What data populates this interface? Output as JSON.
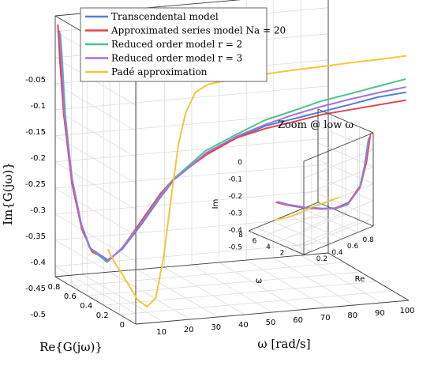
{
  "chart_data": [
    {
      "type": "line",
      "projection": "3d",
      "xlabel": "ω [rad/s]",
      "ylabel": "Re{G(jω)}",
      "zlabel": "Im{G(jω)}",
      "x_ticks": [
        "10",
        "20",
        "30",
        "40",
        "50",
        "60",
        "70",
        "80",
        "90",
        "100"
      ],
      "y_ticks": [
        "0",
        "0.2",
        "0.4",
        "0.6",
        "0.8"
      ],
      "z_ticks": [
        "-0.05",
        "-0.1",
        "-0.15",
        "-0.2",
        "-0.25",
        "-0.3",
        "-0.35",
        "-0.4",
        "-0.45",
        "-0.5"
      ],
      "xlim": [
        0,
        100
      ],
      "ylim": [
        0,
        1
      ],
      "zlim": [
        -0.52,
        -0.02
      ],
      "grid": true,
      "legend_position": "top-left",
      "series": [
        {
          "name": "Transcendental model",
          "color": "#4c7fe0",
          "points": [
            [
              0.1,
              0.95,
              -0.045
            ],
            [
              0.5,
              0.94,
              -0.1
            ],
            [
              1,
              0.92,
              -0.2
            ],
            [
              2,
              0.86,
              -0.32
            ],
            [
              3,
              0.78,
              -0.4
            ],
            [
              4,
              0.7,
              -0.44
            ],
            [
              6,
              0.55,
              -0.45
            ],
            [
              8,
              0.44,
              -0.42
            ],
            [
              12,
              0.32,
              -0.36
            ],
            [
              16,
              0.25,
              -0.31
            ],
            [
              20,
              0.2,
              -0.27
            ],
            [
              30,
              0.14,
              -0.22
            ],
            [
              40,
              0.1,
              -0.19
            ],
            [
              50,
              0.08,
              -0.17
            ],
            [
              60,
              0.07,
              -0.16
            ],
            [
              70,
              0.06,
              -0.15
            ],
            [
              80,
              0.05,
              -0.14
            ],
            [
              90,
              0.045,
              -0.13
            ],
            [
              100,
              0.04,
              -0.125
            ]
          ]
        },
        {
          "name": "Approximated series model Na = 20",
          "color": "#e0474c",
          "points": [
            [
              0.1,
              0.97,
              -0.035
            ],
            [
              0.5,
              0.96,
              -0.1
            ],
            [
              1,
              0.93,
              -0.2
            ],
            [
              2,
              0.86,
              -0.33
            ],
            [
              3,
              0.77,
              -0.41
            ],
            [
              4,
              0.68,
              -0.445
            ],
            [
              6,
              0.54,
              -0.45
            ],
            [
              8,
              0.43,
              -0.415
            ],
            [
              12,
              0.31,
              -0.35
            ],
            [
              16,
              0.24,
              -0.3
            ],
            [
              20,
              0.19,
              -0.265
            ],
            [
              30,
              0.13,
              -0.22
            ],
            [
              40,
              0.1,
              -0.19
            ],
            [
              50,
              0.08,
              -0.175
            ],
            [
              60,
              0.065,
              -0.165
            ],
            [
              70,
              0.055,
              -0.155
            ],
            [
              80,
              0.05,
              -0.15
            ],
            [
              90,
              0.045,
              -0.145
            ],
            [
              100,
              0.04,
              -0.14
            ]
          ]
        },
        {
          "name": "Reduced order model r = 2",
          "color": "#4cc48c",
          "points": [
            [
              0.1,
              0.94,
              -0.05
            ],
            [
              0.5,
              0.93,
              -0.1
            ],
            [
              1,
              0.91,
              -0.2
            ],
            [
              2,
              0.86,
              -0.32
            ],
            [
              3,
              0.78,
              -0.4
            ],
            [
              4,
              0.71,
              -0.44
            ],
            [
              6,
              0.56,
              -0.455
            ],
            [
              8,
              0.45,
              -0.42
            ],
            [
              12,
              0.33,
              -0.36
            ],
            [
              16,
              0.26,
              -0.31
            ],
            [
              20,
              0.21,
              -0.27
            ],
            [
              30,
              0.15,
              -0.215
            ],
            [
              40,
              0.11,
              -0.185
            ],
            [
              50,
              0.09,
              -0.16
            ],
            [
              60,
              0.075,
              -0.145
            ],
            [
              70,
              0.065,
              -0.13
            ],
            [
              80,
              0.055,
              -0.12
            ],
            [
              90,
              0.05,
              -0.11
            ],
            [
              100,
              0.045,
              -0.1
            ]
          ]
        },
        {
          "name": "Reduced order model r = 3",
          "color": "#a870e0",
          "points": [
            [
              0.1,
              0.95,
              -0.045
            ],
            [
              0.5,
              0.94,
              -0.1
            ],
            [
              1,
              0.92,
              -0.2
            ],
            [
              2,
              0.86,
              -0.32
            ],
            [
              3,
              0.78,
              -0.4
            ],
            [
              4,
              0.7,
              -0.44
            ],
            [
              6,
              0.55,
              -0.452
            ],
            [
              8,
              0.44,
              -0.418
            ],
            [
              12,
              0.32,
              -0.358
            ],
            [
              16,
              0.25,
              -0.308
            ],
            [
              20,
              0.2,
              -0.27
            ],
            [
              30,
              0.14,
              -0.218
            ],
            [
              40,
              0.105,
              -0.188
            ],
            [
              50,
              0.085,
              -0.168
            ],
            [
              60,
              0.07,
              -0.152
            ],
            [
              70,
              0.06,
              -0.14
            ],
            [
              80,
              0.052,
              -0.13
            ],
            [
              90,
              0.047,
              -0.122
            ],
            [
              100,
              0.042,
              -0.115
            ]
          ]
        },
        {
          "name": "Padé approximation",
          "color": "#f0c83c",
          "points": [
            [
              6,
              0.55,
              -0.43
            ],
            [
              7,
              0.5,
              -0.45
            ],
            [
              9,
              0.42,
              -0.48
            ],
            [
              11,
              0.35,
              -0.51
            ],
            [
              13,
              0.3,
              -0.52
            ],
            [
              15,
              0.26,
              -0.5
            ],
            [
              17,
              0.23,
              -0.42
            ],
            [
              19,
              0.2,
              -0.3
            ],
            [
              21,
              0.18,
              -0.2
            ],
            [
              23,
              0.16,
              -0.14
            ],
            [
              26,
              0.14,
              -0.1
            ],
            [
              30,
              0.12,
              -0.085
            ],
            [
              40,
              0.09,
              -0.075
            ],
            [
              50,
              0.075,
              -0.07
            ],
            [
              60,
              0.065,
              -0.066
            ],
            [
              70,
              0.055,
              -0.063
            ],
            [
              80,
              0.05,
              -0.06
            ],
            [
              90,
              0.045,
              -0.058
            ],
            [
              100,
              0.04,
              -0.055
            ]
          ]
        }
      ]
    },
    {
      "type": "line",
      "projection": "3d",
      "title": "Zoom @ low ω",
      "xlabel": "ω",
      "ylabel": "Re",
      "zlabel": "Im",
      "x_ticks": [
        "2",
        "4",
        "6",
        "8"
      ],
      "y_ticks": [
        "0.2",
        "0.4",
        "0.6",
        "0.8"
      ],
      "z_ticks": [
        "0",
        "-0.1",
        "-0.2",
        "-0.3",
        "-0.4",
        "-0.5"
      ],
      "xlim": [
        0,
        8
      ],
      "ylim": [
        0.1,
        1
      ],
      "zlim": [
        -0.55,
        0
      ],
      "grid": true,
      "series": [
        {
          "name": "Transcendental model",
          "color": "#4c7fe0",
          "points": [
            [
              0.05,
              0.95,
              -0.02
            ],
            [
              0.5,
              0.94,
              -0.18
            ],
            [
              1,
              0.92,
              -0.32
            ],
            [
              2,
              0.86,
              -0.42
            ],
            [
              3,
              0.78,
              -0.455
            ],
            [
              4,
              0.7,
              -0.46
            ],
            [
              5.5,
              0.6,
              -0.46
            ],
            [
              7,
              0.52,
              -0.455
            ],
            [
              8,
              0.48,
              -0.45
            ]
          ]
        },
        {
          "name": "Approximated series model Na = 20",
          "color": "#e0474c",
          "points": [
            [
              0.05,
              0.97,
              0.0
            ],
            [
              0.5,
              0.96,
              -0.17
            ],
            [
              1,
              0.93,
              -0.31
            ],
            [
              2,
              0.86,
              -0.42
            ],
            [
              3,
              0.77,
              -0.455
            ],
            [
              4,
              0.68,
              -0.46
            ],
            [
              5.5,
              0.58,
              -0.46
            ],
            [
              7,
              0.5,
              -0.455
            ],
            [
              8,
              0.46,
              -0.45
            ]
          ]
        },
        {
          "name": "Reduced order model r = 2",
          "color": "#4cc48c",
          "points": [
            [
              0.05,
              0.94,
              -0.03
            ],
            [
              0.5,
              0.93,
              -0.19
            ],
            [
              1,
              0.91,
              -0.33
            ],
            [
              2,
              0.85,
              -0.43
            ],
            [
              3,
              0.78,
              -0.46
            ],
            [
              4,
              0.71,
              -0.465
            ],
            [
              5.5,
              0.61,
              -0.465
            ],
            [
              7,
              0.53,
              -0.46
            ],
            [
              8,
              0.49,
              -0.455
            ]
          ]
        },
        {
          "name": "Reduced order model r = 3",
          "color": "#a870e0",
          "points": [
            [
              0.05,
              0.95,
              -0.025
            ],
            [
              0.5,
              0.94,
              -0.185
            ],
            [
              1,
              0.92,
              -0.325
            ],
            [
              2,
              0.855,
              -0.425
            ],
            [
              3,
              0.78,
              -0.458
            ],
            [
              4,
              0.7,
              -0.462
            ],
            [
              5.5,
              0.6,
              -0.462
            ],
            [
              7,
              0.52,
              -0.457
            ],
            [
              8,
              0.48,
              -0.452
            ]
          ]
        },
        {
          "name": "Padé approximation",
          "color": "#f0c83c",
          "points": [
            [
              3,
              0.82,
              -0.4
            ],
            [
              4,
              0.72,
              -0.43
            ],
            [
              5,
              0.64,
              -0.46
            ],
            [
              6,
              0.56,
              -0.5
            ],
            [
              7,
              0.5,
              -0.53
            ],
            [
              8,
              0.45,
              -0.55
            ]
          ]
        }
      ]
    }
  ]
}
